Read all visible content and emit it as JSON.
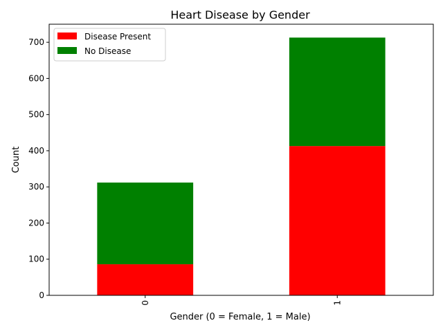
{
  "chart_data": {
    "type": "bar",
    "stacked": true,
    "title": "Heart Disease by Gender",
    "xlabel": "Gender (0 = Female, 1 = Male)",
    "ylabel": "Count",
    "categories": [
      "0",
      "1"
    ],
    "series": [
      {
        "name": "Disease Present",
        "color": "#ff0000",
        "values": [
          86,
          413
        ]
      },
      {
        "name": "No Disease",
        "color": "#008000",
        "values": [
          226,
          300
        ]
      }
    ],
    "ylim": [
      0,
      750
    ],
    "yticks": [
      0,
      100,
      200,
      300,
      400,
      500,
      600,
      700
    ],
    "grid": false,
    "legend_position": "top-left"
  }
}
